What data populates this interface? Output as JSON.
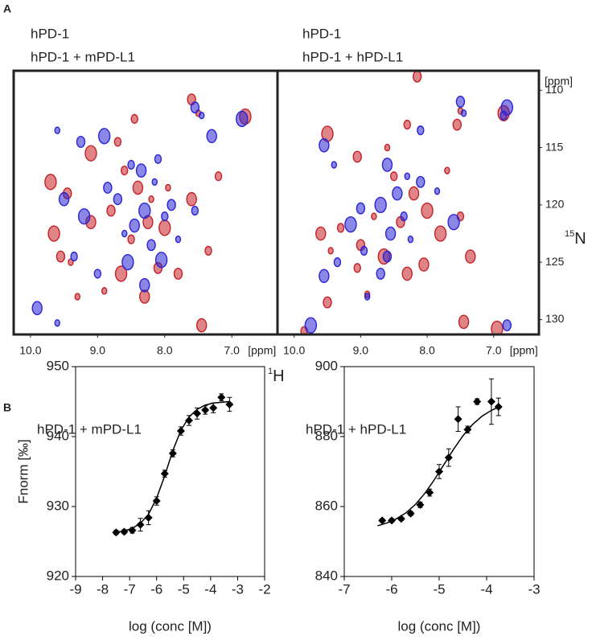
{
  "chart_data": [
    {
      "type": "nmr",
      "panel": "A",
      "xlabel_sup": "1",
      "xlabel": "H",
      "xunit": "[ppm]",
      "xlim": [
        10.25,
        6.32
      ],
      "xticks": [
        {
          "value": 10,
          "label": "10.0"
        },
        {
          "value": 9,
          "label": "9.0"
        },
        {
          "value": 8,
          "label": "8.0"
        },
        {
          "value": 7,
          "label": "7.0"
        }
      ],
      "ylim": [
        131.3,
        108.3
      ],
      "series": [
        {
          "name": "hPD-1",
          "color": "#2a24d4",
          "x": [
            7.45,
            7.55,
            6.85,
            8.5,
            8.35,
            8.15,
            8.7,
            8.3,
            8.0,
            8.45,
            8.6,
            7.9,
            9.2,
            9.35,
            9.5,
            9.6,
            9.25,
            8.9,
            8.1,
            7.3,
            7.8,
            8.2,
            8.55,
            9.0,
            8.3,
            9.6,
            8.85,
            8.05,
            7.55,
            9.9
          ],
          "values": [
            112.2,
            111.5,
            112.5,
            116.5,
            117.0,
            118.0,
            119.5,
            120.5,
            121,
            121.8,
            122.5,
            120,
            121,
            124.5,
            119.5,
            113.5,
            114.5,
            114,
            116,
            114,
            123,
            123.5,
            125,
            126,
            127,
            130.3,
            118.5,
            124.8,
            120.5,
            129
          ]
        },
        {
          "name": "hPD-1 + mPD-L1",
          "color": "#c42127",
          "x": [
            7.5,
            7.6,
            6.8,
            8.6,
            8.4,
            8.2,
            8.8,
            8.0,
            8.5,
            9.1,
            9.4,
            9.45,
            9.7,
            7.2,
            8.3,
            8.9,
            7.8,
            9.1,
            8.7,
            8.25,
            7.95,
            9.55,
            8.65,
            7.35,
            7.6,
            9.3,
            8.1,
            9.65,
            8.45,
            7.45
          ],
          "values": [
            112,
            110.8,
            112.3,
            117,
            118.5,
            119.5,
            120.5,
            122,
            123,
            121.5,
            125,
            119,
            118,
            117.5,
            128,
            127.5,
            126,
            115.5,
            114.5,
            121.5,
            118.5,
            124.5,
            126,
            124,
            119.5,
            128,
            125.5,
            122.5,
            112.5,
            130.5
          ]
        }
      ]
    },
    {
      "type": "nmr",
      "xunit": "[ppm]",
      "yunit": "[ppm]",
      "ylabel_sup": "15",
      "ylabel": "N",
      "xlim": [
        10.25,
        6.32
      ],
      "xticks": [
        {
          "value": 10,
          "label": "10.0"
        },
        {
          "value": 9,
          "label": "9.0"
        },
        {
          "value": 8,
          "label": "8.0"
        },
        {
          "value": 7,
          "label": "7.0"
        }
      ],
      "ylim": [
        131.3,
        108.3
      ],
      "yticks": [
        110,
        115,
        120,
        125,
        130
      ],
      "series": [
        {
          "name": "hPD-1",
          "color": "#2a24d4",
          "x": [
            7.45,
            7.5,
            6.8,
            6.85,
            8.6,
            8.3,
            8.1,
            8.7,
            8.35,
            8.55,
            8.25,
            9.0,
            9.15,
            9.35,
            9.55,
            8.9,
            8.6,
            7.6,
            8.1,
            9.55,
            9.4,
            8.7,
            9.75,
            8.95,
            8.45,
            7.85,
            6.8
          ],
          "values": [
            112,
            111,
            111.5,
            112.2,
            116.5,
            117.5,
            118,
            120,
            121,
            122.5,
            123,
            120.3,
            121.7,
            125,
            126.2,
            128,
            124.5,
            121.5,
            113.5,
            114.8,
            116.5,
            126,
            130.5,
            124,
            119,
            118.8,
            130.5
          ]
        },
        {
          "name": "hPD-1 + hPD-L1",
          "color": "#c42127",
          "x": [
            7.5,
            7.55,
            6.85,
            8.5,
            8.2,
            8.8,
            8.4,
            8.0,
            9.3,
            9.6,
            9.45,
            9.0,
            8.65,
            9.05,
            8.3,
            8.9,
            9.5,
            7.8,
            7.5,
            7.35,
            8.6,
            9.05,
            9.5,
            8.3,
            8.05,
            7.7,
            8.15,
            6.95,
            9.85,
            7.45
          ],
          "values": [
            111.8,
            113,
            112,
            117.5,
            119,
            121,
            121.5,
            120.5,
            122,
            122.5,
            124,
            123.5,
            124.5,
            125.5,
            126,
            127.8,
            128.5,
            122.5,
            121,
            124.5,
            115,
            115.8,
            113.8,
            113,
            125.2,
            117,
            108.8,
            130.8,
            131,
            130.2
          ]
        }
      ]
    },
    {
      "type": "mst",
      "panel": "B",
      "title": "hPD-1 + mPD-L1",
      "xlabel": "log (conc [M])",
      "ylabel": "Fnorm [‰]",
      "xlim": [
        -9,
        -2
      ],
      "xticks": [
        -9,
        -8,
        -7,
        -6,
        -5,
        -4,
        -3,
        -2
      ],
      "ylim": [
        920,
        950
      ],
      "yticks": [
        920,
        930,
        940,
        950
      ],
      "series": [
        {
          "type": "scatter",
          "color": "#000000",
          "x": [
            -7.5,
            -7.2,
            -6.9,
            -6.6,
            -6.3,
            -6.0,
            -5.7,
            -5.4,
            -5.1,
            -4.8,
            -4.5,
            -4.2,
            -3.9,
            -3.6,
            -3.3
          ],
          "values": [
            926.3,
            926.4,
            926.6,
            927.4,
            928.4,
            930.8,
            934.7,
            937.6,
            940.8,
            942.3,
            943.3,
            943.8,
            944.1,
            945.6,
            944.6
          ],
          "errors": [
            0.3,
            0.3,
            0.4,
            0.9,
            1.0,
            0.6,
            0.5,
            0.5,
            0.6,
            0.7,
            0.8,
            0.6,
            0.7,
            0.5,
            1.0
          ]
        },
        {
          "type": "line",
          "color": "#000000",
          "x": [
            -7.5,
            -7.2,
            -6.9,
            -6.6,
            -6.3,
            -6.0,
            -5.7,
            -5.4,
            -5.1,
            -4.8,
            -4.5,
            -4.2,
            -3.9,
            -3.6,
            -3.3
          ],
          "values": [
            926.35,
            926.5,
            926.9,
            927.6,
            928.9,
            931.2,
            934.4,
            938.0,
            940.9,
            942.8,
            943.9,
            944.5,
            944.8,
            944.9,
            945.0
          ]
        }
      ]
    },
    {
      "type": "mst",
      "title": "hPD-1 + hPD-L1",
      "xlabel": "log (conc [M])",
      "xlim": [
        -7,
        -3
      ],
      "xticks": [
        -7,
        -6,
        -5,
        -4,
        -3
      ],
      "ylim": [
        840,
        900
      ],
      "yticks": [
        840,
        860,
        880,
        900
      ],
      "series": [
        {
          "type": "scatter",
          "color": "#000000",
          "x": [
            -6.2,
            -6.0,
            -5.8,
            -5.6,
            -5.4,
            -5.2,
            -5.0,
            -4.8,
            -4.6,
            -4.4,
            -4.2,
            -3.9,
            -3.75
          ],
          "values": [
            856,
            856,
            856.5,
            858,
            860.5,
            864,
            870,
            874,
            885,
            882,
            890,
            890,
            888.5
          ],
          "errors": [
            0.5,
            0.5,
            0.5,
            0.6,
            0.8,
            1,
            2,
            2.5,
            3.5,
            1,
            0.8,
            6.5,
            2.5
          ]
        },
        {
          "type": "line",
          "color": "#000000",
          "x": [
            -6.3,
            -6.1,
            -5.9,
            -5.7,
            -5.5,
            -5.3,
            -5.1,
            -4.9,
            -4.7,
            -4.5,
            -4.3,
            -4.1,
            -3.9,
            -3.7
          ],
          "values": [
            854.5,
            855.3,
            856.5,
            858.2,
            860.6,
            863.8,
            867.7,
            872.0,
            876.3,
            880.2,
            883.4,
            885.8,
            887.5,
            888.7
          ]
        }
      ]
    }
  ]
}
